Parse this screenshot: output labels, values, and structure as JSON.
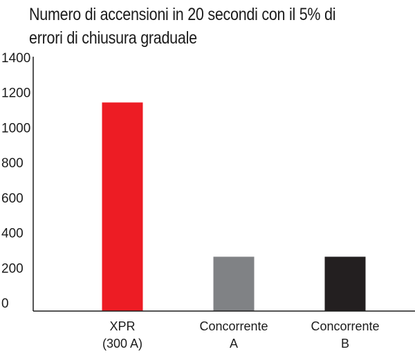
{
  "chart_data": {
    "type": "bar",
    "title": "Numero di accensioni in 20 secondi con il 5% di errori di chiusura graduale",
    "xlabel": "",
    "ylabel": "",
    "ylim": [
      0,
      1400
    ],
    "yticks": [
      0,
      200,
      400,
      600,
      800,
      1000,
      1200,
      1400
    ],
    "categories": [
      [
        "XPR",
        "(300 A)"
      ],
      [
        "Concorrente",
        "A"
      ],
      [
        "Concorrente",
        "B"
      ]
    ],
    "values": [
      1190,
      310,
      310
    ],
    "colors": [
      "#ed1c24",
      "#808285",
      "#231f20"
    ],
    "grid": false,
    "legend": "none"
  }
}
